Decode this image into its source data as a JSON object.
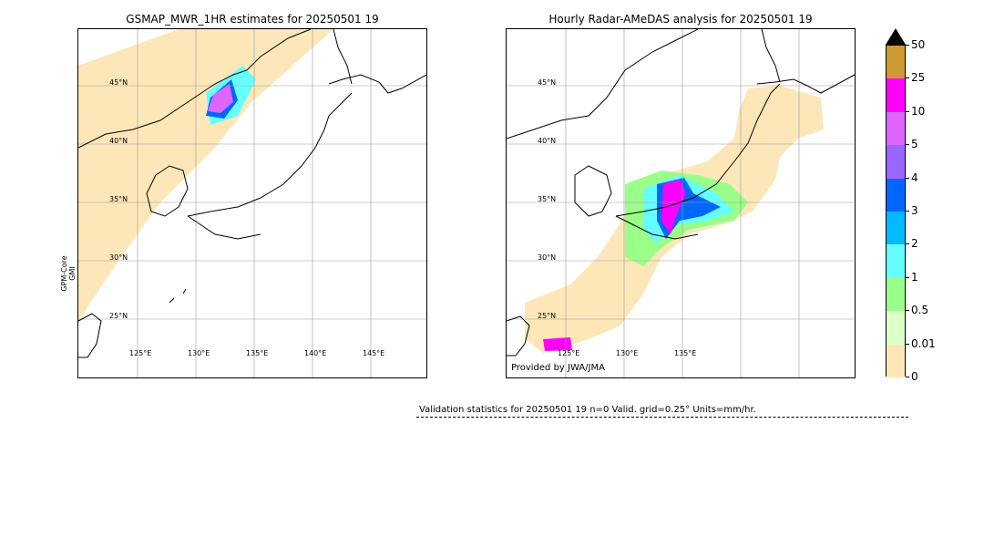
{
  "left_panel": {
    "title": "GSMAP_MWR_1HR estimates for 20250501 19",
    "side_label_line1": "GPM-Core",
    "side_label_line2": "GMI",
    "lat_labels": [
      "45°N",
      "40°N",
      "35°N",
      "30°N",
      "25°N"
    ],
    "lon_labels": [
      "125°E",
      "130°E",
      "135°E",
      "140°E",
      "145°E"
    ]
  },
  "right_panel": {
    "title": "Hourly Radar-AMeDAS analysis for 20250501 19",
    "lat_labels": [
      "45°N",
      "40°N",
      "35°N",
      "30°N",
      "25°N"
    ],
    "lon_labels": [
      "125°E",
      "130°E",
      "135°E"
    ],
    "credit": "Provided by JWA/JMA"
  },
  "colorbar": {
    "ticks": [
      "50",
      "25",
      "10",
      "5",
      "4",
      "3",
      "2",
      "1",
      "0.5",
      "0.01",
      "0"
    ],
    "colors": [
      "#cc9933",
      "#ff00ff",
      "#dd66ff",
      "#9966ff",
      "#0066ff",
      "#00bbff",
      "#66ffff",
      "#99ff88",
      "#ddffcc",
      "#fde7b8"
    ],
    "extend_color": "#000000"
  },
  "stats": {
    "text": "Validation statistics for 20250501 19  n=0 Valid. grid=0.25° Units=mm/hr."
  }
}
